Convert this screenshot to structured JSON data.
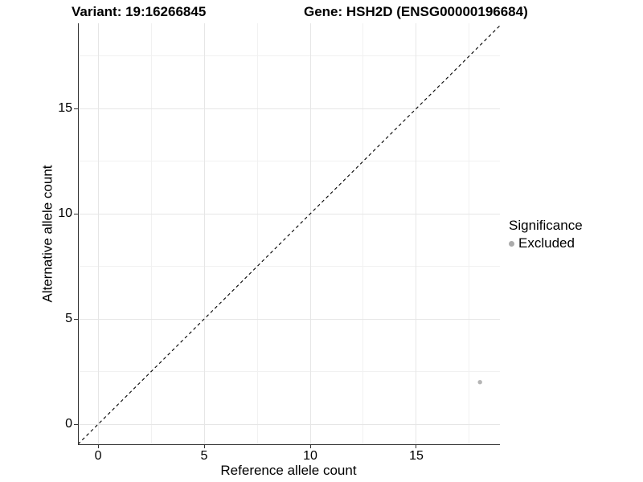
{
  "titles": {
    "variant": "Variant: 19:16266845",
    "gene": "Gene: HSH2D (ENSG00000196684)"
  },
  "chart_data": {
    "type": "scatter",
    "title_left": "Variant: 19:16266845",
    "title_right": "Gene: HSH2D (ENSG00000196684)",
    "xlabel": "Reference allele count",
    "ylabel": "Alternative allele count",
    "xlim": [
      -0.91,
      18.94
    ],
    "ylim": [
      -0.95,
      19.05
    ],
    "x_major_ticks": [
      0,
      5,
      10,
      15
    ],
    "y_major_ticks": [
      0,
      5,
      10,
      15
    ],
    "x_minor_ticks": [
      2.5,
      7.5,
      12.5,
      17.5
    ],
    "y_minor_ticks": [
      2.5,
      7.5,
      12.5,
      17.5
    ],
    "grid": true,
    "background": "#ffffff",
    "axis_color": "#333333",
    "grid_major_color": "#e6e6e6",
    "grid_minor_color": "#f1f1f1",
    "reference_line": {
      "kind": "identity",
      "equation": "y = x",
      "style": "dashed",
      "color": "#000000",
      "dash": [
        4,
        3.5
      ],
      "width": 1.1
    },
    "series": [
      {
        "name": "Excluded",
        "color": "#b5b5b5",
        "point_radius": 2.7,
        "points": [
          {
            "x": 18,
            "y": 2
          }
        ]
      }
    ],
    "legend": {
      "title": "Significance",
      "position": "right",
      "items": [
        {
          "label": "Excluded",
          "color": "#ababab",
          "shape": "circle"
        }
      ]
    }
  }
}
